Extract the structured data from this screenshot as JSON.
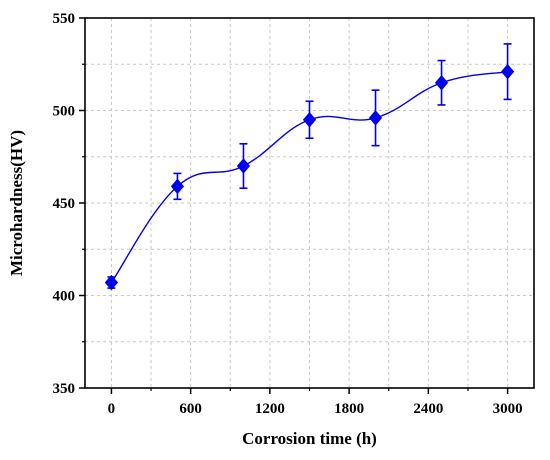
{
  "chart_data": {
    "type": "line",
    "title": "",
    "xlabel": "Corrosion time (h)",
    "ylabel": "Microhardness(HV)",
    "xlim": [
      -200,
      3200
    ],
    "ylim": [
      350,
      550
    ],
    "xticks": [
      0,
      600,
      1200,
      1800,
      2400,
      3000
    ],
    "yticks": [
      350,
      400,
      450,
      500,
      550
    ],
    "x_tick_labels": [
      "0",
      "600",
      "1200",
      "1800",
      "2400",
      "3000"
    ],
    "y_tick_labels": [
      "350",
      "400",
      "450",
      "500",
      "550"
    ],
    "grid": true,
    "legend": "none",
    "series": [
      {
        "marker": "diamond",
        "color": "#0000ee",
        "x": [
          0,
          500,
          1000,
          1500,
          2000,
          2500,
          3000
        ],
        "y": [
          407,
          459,
          470,
          495,
          496,
          515,
          521
        ],
        "error": [
          3,
          7,
          12,
          10,
          15,
          12,
          15
        ]
      }
    ]
  }
}
